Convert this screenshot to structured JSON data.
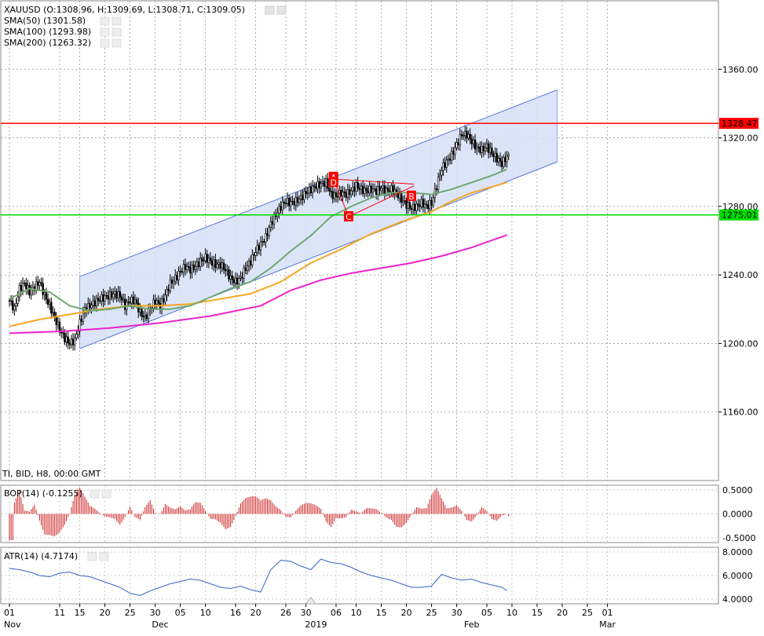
{
  "legend": {
    "symbol_line": "XAUUSD (O:1308.96, H:1309.69, L:1308.71, C:1309.05)",
    "sma50": "SMA(50) (1301.58)",
    "sma100": "SMA(100) (1293.98)",
    "sma200": "SMA(200) (1263.32)",
    "feed": "TI, BID, H8, 00:00 GMT",
    "bop": "BOP(14) (-0.1255)",
    "atr": "ATR(14) (4.7174)"
  },
  "colors": {
    "candle": "#000000",
    "sma50": "#6fa86f",
    "sma100": "#f5a623",
    "sma200": "#ee22cc",
    "resistance": "#ff0000",
    "support": "#00dd00",
    "channel_fill": "#d6e0f7",
    "channel_line": "#5577dd",
    "pattern": "#ff0000",
    "bop": "#cc2222",
    "atr": "#3366cc"
  },
  "chart_data": {
    "type": "candlestick",
    "symbol": "XAUUSD",
    "timeframe": "H8",
    "ylim": [
      1120,
      1400
    ],
    "y_ticks": [
      1160,
      1200,
      1240,
      1280,
      1320,
      1360
    ],
    "y_tick_labels": [
      "1160.00",
      "1200.00",
      "1240.00",
      "1280.00",
      "1320.00",
      "1360.00"
    ],
    "x_ticks": [
      {
        "d": 0,
        "label": "01"
      },
      {
        "d": 10,
        "label": "11"
      },
      {
        "d": 14,
        "label": "15"
      },
      {
        "d": 19,
        "label": "20"
      },
      {
        "d": 24,
        "label": "25"
      },
      {
        "d": 29,
        "label": "30"
      },
      {
        "d": 34,
        "label": "05"
      },
      {
        "d": 39,
        "label": "10"
      },
      {
        "d": 45,
        "label": "16"
      },
      {
        "d": 49,
        "label": "20"
      },
      {
        "d": 55,
        "label": "26"
      },
      {
        "d": 59,
        "label": "30"
      },
      {
        "d": 65,
        "label": "06"
      },
      {
        "d": 69,
        "label": "10"
      },
      {
        "d": 74,
        "label": "15"
      },
      {
        "d": 79,
        "label": "20"
      },
      {
        "d": 84,
        "label": "25"
      },
      {
        "d": 89,
        "label": "30"
      },
      {
        "d": 95,
        "label": "05"
      },
      {
        "d": 100,
        "label": "10"
      },
      {
        "d": 105,
        "label": "15"
      },
      {
        "d": 110,
        "label": "20"
      },
      {
        "d": 115,
        "label": "25"
      },
      {
        "d": 119,
        "label": "01"
      }
    ],
    "x_months": [
      {
        "d": 0,
        "label": "Nov"
      },
      {
        "d": 30,
        "label": "Dec"
      },
      {
        "d": 61,
        "label": "2019"
      },
      {
        "d": 92,
        "label": "Feb"
      },
      {
        "d": 119,
        "label": "Mar"
      }
    ],
    "closes": [
      [
        0,
        1225
      ],
      [
        1,
        1220
      ],
      [
        2,
        1232
      ],
      [
        3,
        1235
      ],
      [
        4,
        1230
      ],
      [
        5,
        1233
      ],
      [
        6,
        1236
      ],
      [
        7,
        1228
      ],
      [
        8,
        1222
      ],
      [
        9,
        1215
      ],
      [
        10,
        1208
      ],
      [
        11,
        1203
      ],
      [
        12,
        1200
      ],
      [
        13,
        1202
      ],
      [
        14,
        1212
      ],
      [
        15,
        1220
      ],
      [
        16,
        1222
      ],
      [
        17,
        1224
      ],
      [
        18,
        1226
      ],
      [
        19,
        1227
      ],
      [
        20,
        1228
      ],
      [
        21,
        1229
      ],
      [
        22,
        1228
      ],
      [
        23,
        1222
      ],
      [
        24,
        1225
      ],
      [
        25,
        1225
      ],
      [
        26,
        1218
      ],
      [
        27,
        1215
      ],
      [
        28,
        1220
      ],
      [
        29,
        1225
      ],
      [
        30,
        1222
      ],
      [
        31,
        1228
      ],
      [
        32,
        1235
      ],
      [
        33,
        1238
      ],
      [
        34,
        1242
      ],
      [
        35,
        1245
      ],
      [
        36,
        1243
      ],
      [
        37,
        1245
      ],
      [
        38,
        1248
      ],
      [
        39,
        1250
      ],
      [
        40,
        1248
      ],
      [
        41,
        1246
      ],
      [
        42,
        1246
      ],
      [
        43,
        1243
      ],
      [
        44,
        1238
      ],
      [
        45,
        1236
      ],
      [
        46,
        1238
      ],
      [
        47,
        1244
      ],
      [
        48,
        1248
      ],
      [
        49,
        1254
      ],
      [
        50,
        1258
      ],
      [
        51,
        1262
      ],
      [
        52,
        1270
      ],
      [
        53,
        1275
      ],
      [
        54,
        1280
      ],
      [
        55,
        1283
      ],
      [
        56,
        1282
      ],
      [
        57,
        1283
      ],
      [
        58,
        1285
      ],
      [
        59,
        1288
      ],
      [
        60,
        1290
      ],
      [
        61,
        1292
      ],
      [
        62,
        1293
      ],
      [
        63,
        1294
      ],
      [
        64,
        1287
      ],
      [
        65,
        1286
      ],
      [
        66,
        1288
      ],
      [
        67,
        1287
      ],
      [
        68,
        1289
      ],
      [
        69,
        1292
      ],
      [
        70,
        1290
      ],
      [
        71,
        1289
      ],
      [
        72,
        1290
      ],
      [
        73,
        1289
      ],
      [
        74,
        1291
      ],
      [
        75,
        1289
      ],
      [
        76,
        1290
      ],
      [
        77,
        1288
      ],
      [
        78,
        1284
      ],
      [
        79,
        1281
      ],
      [
        80,
        1279
      ],
      [
        81,
        1280
      ],
      [
        82,
        1282
      ],
      [
        83,
        1280
      ],
      [
        84,
        1282
      ],
      [
        85,
        1292
      ],
      [
        86,
        1302
      ],
      [
        87,
        1306
      ],
      [
        88,
        1310
      ],
      [
        89,
        1316
      ],
      [
        90,
        1322
      ],
      [
        91,
        1322
      ],
      [
        92,
        1318
      ],
      [
        93,
        1314
      ],
      [
        94,
        1313
      ],
      [
        95,
        1315
      ],
      [
        96,
        1311
      ],
      [
        97,
        1308
      ],
      [
        98,
        1305
      ],
      [
        99,
        1309
      ]
    ],
    "sma50": [
      [
        0,
        1226
      ],
      [
        4,
        1232
      ],
      [
        8,
        1230
      ],
      [
        12,
        1222
      ],
      [
        16,
        1219
      ],
      [
        20,
        1220
      ],
      [
        24,
        1222
      ],
      [
        28,
        1220
      ],
      [
        32,
        1220
      ],
      [
        36,
        1222
      ],
      [
        40,
        1227
      ],
      [
        44,
        1232
      ],
      [
        48,
        1236
      ],
      [
        52,
        1244
      ],
      [
        56,
        1254
      ],
      [
        60,
        1263
      ],
      [
        64,
        1274
      ],
      [
        68,
        1280
      ],
      [
        72,
        1285
      ],
      [
        76,
        1288
      ],
      [
        80,
        1288
      ],
      [
        84,
        1287
      ],
      [
        88,
        1290
      ],
      [
        92,
        1294
      ],
      [
        96,
        1298
      ],
      [
        99,
        1301.58
      ]
    ],
    "sma100": [
      [
        0,
        1210
      ],
      [
        6,
        1214
      ],
      [
        12,
        1217
      ],
      [
        18,
        1220
      ],
      [
        24,
        1222
      ],
      [
        30,
        1222
      ],
      [
        36,
        1223
      ],
      [
        42,
        1226
      ],
      [
        48,
        1229
      ],
      [
        54,
        1236
      ],
      [
        60,
        1247
      ],
      [
        66,
        1255
      ],
      [
        72,
        1264
      ],
      [
        78,
        1271
      ],
      [
        84,
        1277
      ],
      [
        88,
        1283
      ],
      [
        92,
        1288
      ],
      [
        99,
        1293.98
      ]
    ],
    "sma200": [
      [
        0,
        1206
      ],
      [
        10,
        1207
      ],
      [
        20,
        1209
      ],
      [
        30,
        1212
      ],
      [
        40,
        1216
      ],
      [
        50,
        1222
      ],
      [
        56,
        1231
      ],
      [
        62,
        1237
      ],
      [
        68,
        1241
      ],
      [
        74,
        1244
      ],
      [
        80,
        1247
      ],
      [
        86,
        1251
      ],
      [
        92,
        1256
      ],
      [
        99,
        1263.32
      ]
    ],
    "resistance": 1328.47,
    "support": 1275.01,
    "resistance_label": "1328.47",
    "support_label": "1275.01",
    "channel": {
      "upper": [
        [
          14,
          1239
        ],
        [
          109,
          1348
        ]
      ],
      "lower": [
        [
          14,
          1197
        ],
        [
          109,
          1306
        ]
      ]
    },
    "pattern_points": [
      {
        "label": "A",
        "d": 64.5,
        "y": 1297
      },
      {
        "label": "D",
        "d": 64.5,
        "y": 1294
      },
      {
        "label": "C",
        "d": 67.5,
        "y": 1274
      },
      {
        "label": "B",
        "d": 80.0,
        "y": 1286
      }
    ],
    "pattern_lines": [
      [
        [
          64.5,
          1296
        ],
        [
          80.5,
          1293
        ]
      ],
      [
        [
          64.5,
          1296
        ],
        [
          67.5,
          1274
        ]
      ],
      [
        [
          67.5,
          1274
        ],
        [
          80.5,
          1292
        ]
      ]
    ],
    "bop": {
      "ylim": [
        -0.6,
        0.6
      ],
      "y_ticks": [
        0.5,
        0.0,
        -0.5
      ],
      "y_tick_labels": [
        "0.5000",
        "0.0000",
        "-0.5000"
      ]
    },
    "atr": {
      "ylim": [
        3.6,
        8.4
      ],
      "y_ticks": [
        8,
        6,
        4
      ],
      "y_tick_labels": [
        "8.0000",
        "6.0000",
        "4.0000"
      ],
      "values": [
        [
          0,
          6.6
        ],
        [
          2,
          6.5
        ],
        [
          4,
          6.3
        ],
        [
          6,
          6.0
        ],
        [
          8,
          5.9
        ],
        [
          10,
          6.2
        ],
        [
          12,
          6.3
        ],
        [
          14,
          6.0
        ],
        [
          16,
          5.9
        ],
        [
          18,
          5.6
        ],
        [
          20,
          5.3
        ],
        [
          22,
          5.0
        ],
        [
          24,
          4.5
        ],
        [
          26,
          4.3
        ],
        [
          28,
          4.7
        ],
        [
          30,
          5.0
        ],
        [
          32,
          5.3
        ],
        [
          34,
          5.5
        ],
        [
          36,
          5.7
        ],
        [
          38,
          5.6
        ],
        [
          40,
          5.3
        ],
        [
          42,
          5.0
        ],
        [
          44,
          4.9
        ],
        [
          46,
          5.1
        ],
        [
          48,
          4.8
        ],
        [
          50,
          4.6
        ],
        [
          52,
          6.5
        ],
        [
          54,
          7.3
        ],
        [
          56,
          7.2
        ],
        [
          58,
          6.8
        ],
        [
          60,
          6.5
        ],
        [
          62,
          7.4
        ],
        [
          64,
          7.1
        ],
        [
          66,
          7.0
        ],
        [
          68,
          6.7
        ],
        [
          70,
          6.3
        ],
        [
          72,
          6.0
        ],
        [
          74,
          5.8
        ],
        [
          76,
          5.6
        ],
        [
          78,
          5.3
        ],
        [
          80,
          5.0
        ],
        [
          82,
          5.0
        ],
        [
          84,
          5.1
        ],
        [
          86,
          6.1
        ],
        [
          88,
          5.8
        ],
        [
          90,
          5.6
        ],
        [
          92,
          5.7
        ],
        [
          94,
          5.4
        ],
        [
          96,
          5.2
        ],
        [
          98,
          5.0
        ],
        [
          99,
          4.72
        ]
      ]
    }
  }
}
